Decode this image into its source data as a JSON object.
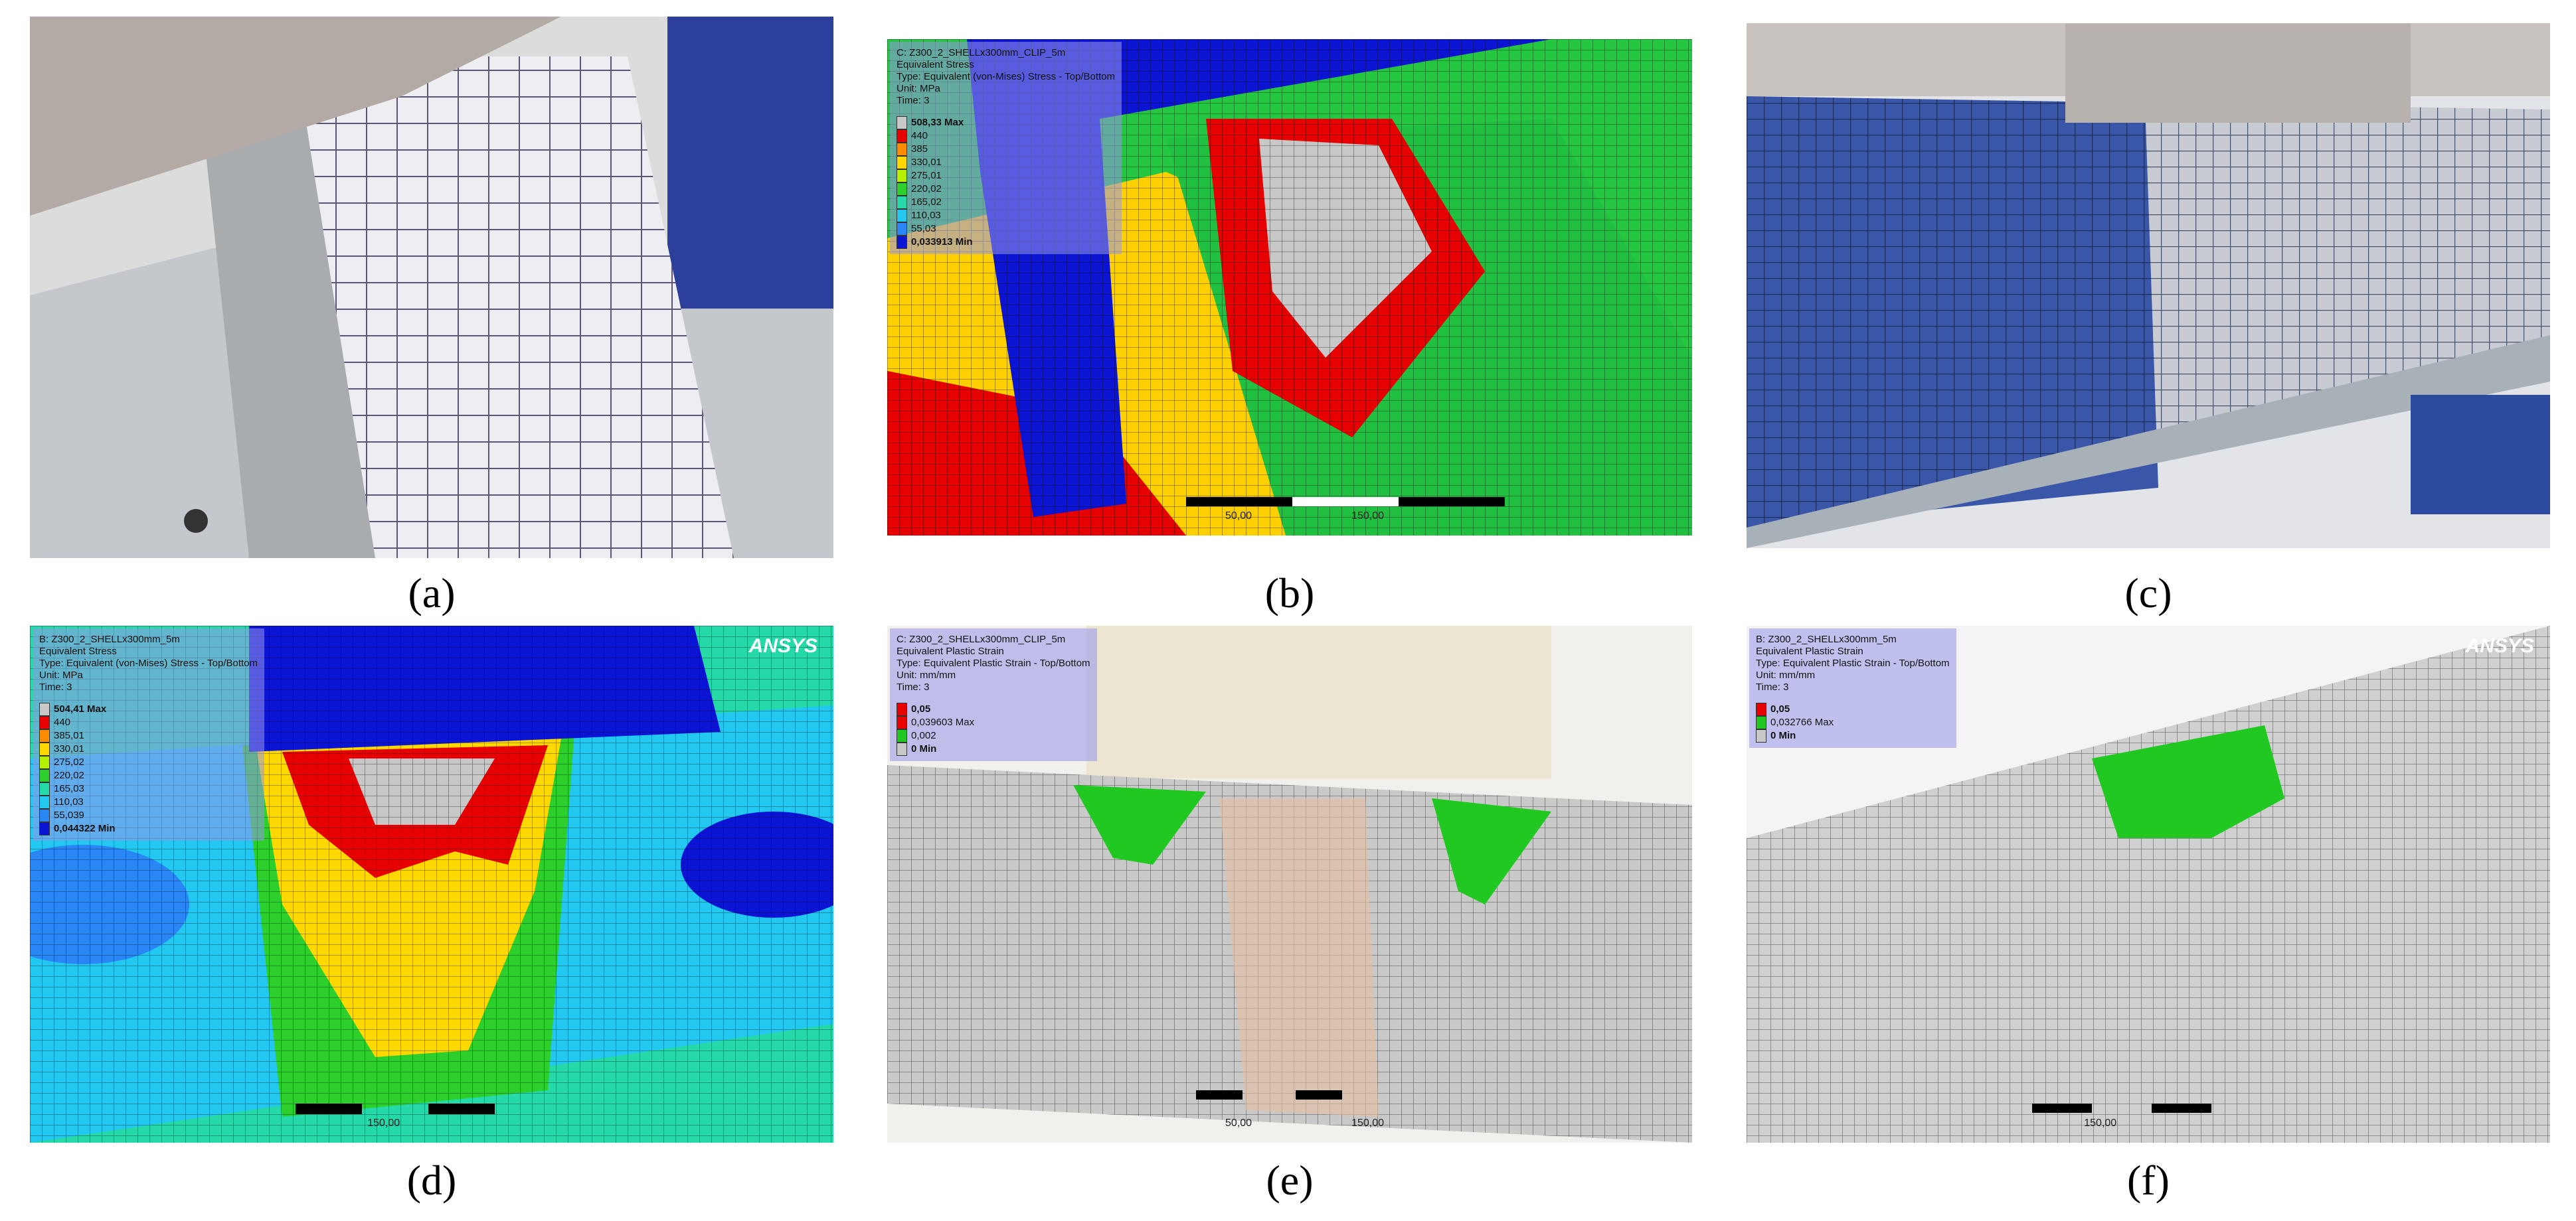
{
  "panels": [
    {
      "label": "(a)"
    },
    {
      "label": "(b)",
      "header": [
        "C: Z300_2_SHELLx300mm_CLIP_5m",
        "Equivalent Stress",
        "Type: Equivalent (von-Mises) Stress - Top/Bottom",
        "Unit: MPa",
        "Time: 3"
      ],
      "legend": [
        {
          "text": "508,33 Max",
          "color": "#c8c8c8"
        },
        {
          "text": "440",
          "color": "#e60000"
        },
        {
          "text": "385",
          "color": "#ff8c00"
        },
        {
          "text": "330,01",
          "color": "#ffd800"
        },
        {
          "text": "275,01",
          "color": "#b4f000"
        },
        {
          "text": "220,02",
          "color": "#2ccf2c"
        },
        {
          "text": "165,02",
          "color": "#26d9a8"
        },
        {
          "text": "110,03",
          "color": "#22c8f0"
        },
        {
          "text": "55,03",
          "color": "#2a86f5"
        },
        {
          "text": "0,033913 Min",
          "color": "#0a14d2"
        }
      ],
      "scale": [
        "50,00",
        "150,00"
      ]
    },
    {
      "label": "(c)"
    },
    {
      "label": "(d)",
      "header": [
        "B: Z300_2_SHELLx300mm_5m",
        "Equivalent Stress",
        "Type: Equivalent (von-Mises) Stress - Top/Bottom",
        "Unit: MPa",
        "Time: 3"
      ],
      "legend": [
        {
          "text": "504,41 Max",
          "color": "#c8c8c8"
        },
        {
          "text": "440",
          "color": "#e60000"
        },
        {
          "text": "385,01",
          "color": "#ff8c00"
        },
        {
          "text": "330,01",
          "color": "#ffd800"
        },
        {
          "text": "275,02",
          "color": "#b4f000"
        },
        {
          "text": "220,02",
          "color": "#2ccf2c"
        },
        {
          "text": "165,03",
          "color": "#26d9a8"
        },
        {
          "text": "110,03",
          "color": "#22c8f0"
        },
        {
          "text": "55,039",
          "color": "#2a86f5"
        },
        {
          "text": "0,044322 Min",
          "color": "#0a14d2"
        }
      ],
      "logo": "ANSYS",
      "scale": [
        "150,00"
      ]
    },
    {
      "label": "(e)",
      "header": [
        "C: Z300_2_SHELLx300mm_CLIP_5m",
        "Equivalent Plastic Strain",
        "Type: Equivalent Plastic Strain - Top/Bottom",
        "Unit: mm/mm",
        "Time: 3"
      ],
      "legend": [
        {
          "text": "0,05",
          "color": "#e60000"
        },
        {
          "text": "0,039603 Max",
          "color": "#e60000"
        },
        {
          "text": "0,002",
          "color": "#22c822"
        },
        {
          "text": "0 Min",
          "color": "#c8c8c8"
        }
      ],
      "scale": [
        "50,00",
        "150,00"
      ]
    },
    {
      "label": "(f)",
      "header": [
        "B: Z300_2_SHELLx300mm_5m",
        "Equivalent Plastic Strain",
        "Type: Equivalent Plastic Strain - Top/Bottom",
        "Unit: mm/mm",
        "Time: 3"
      ],
      "legend": [
        {
          "text": "0,05",
          "color": "#e60000"
        },
        {
          "text": "0,032766 Max",
          "color": "#22c822"
        },
        {
          "text": "0 Min",
          "color": "#c8c8c8"
        }
      ],
      "logo": "ANSYS",
      "scale": [
        "150,00"
      ]
    }
  ]
}
